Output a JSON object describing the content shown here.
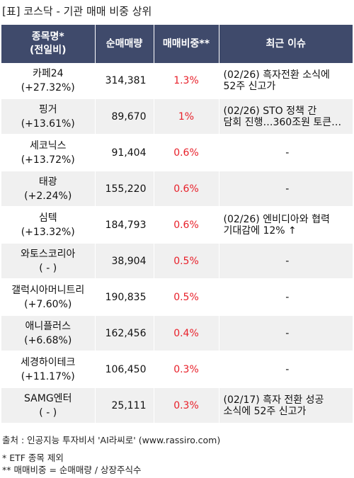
{
  "title": "[표] 코스닥 - 기관 매매 비중 상위",
  "headers": {
    "name_line1": "종목명*",
    "name_line2": "(전일비)",
    "volume": "순매매량",
    "ratio": "매매비중**",
    "issue": "최근 이슈"
  },
  "rows": [
    {
      "name": "카페24",
      "change": "(+27.32%)",
      "volume": "314,381",
      "ratio": "1.3%",
      "issue_line1": "(02/26) 흑자전환 소식에",
      "issue_line2": " 52주 신고가"
    },
    {
      "name": "핑거",
      "change": "(+13.61%)",
      "volume": "89,670",
      "ratio": "1%",
      "issue_line1": "(02/26) STO 정책 간",
      "issue_line2": "담회 진행…360조원 토큰…"
    },
    {
      "name": "세코닉스",
      "change": "(+13.72%)",
      "volume": "91,404",
      "ratio": "0.6%",
      "issue_line1": "-",
      "issue_line2": ""
    },
    {
      "name": "태광",
      "change": "(+2.24%)",
      "volume": "155,220",
      "ratio": "0.6%",
      "issue_line1": "-",
      "issue_line2": ""
    },
    {
      "name": "심텍",
      "change": "(+13.32%)",
      "volume": "184,793",
      "ratio": "0.6%",
      "issue_line1": "(02/26) 엔비디아와 협력",
      "issue_line2": " 기대감에 12% ↑"
    },
    {
      "name": "와토스코리아",
      "change": "( - )",
      "volume": "38,904",
      "ratio": "0.5%",
      "issue_line1": "-",
      "issue_line2": ""
    },
    {
      "name": "갤럭시아머니트리",
      "change": "(+7.60%)",
      "volume": "190,835",
      "ratio": "0.5%",
      "issue_line1": "-",
      "issue_line2": ""
    },
    {
      "name": "애니플러스",
      "change": "(+6.68%)",
      "volume": "162,456",
      "ratio": "0.4%",
      "issue_line1": "-",
      "issue_line2": ""
    },
    {
      "name": "세경하이테크",
      "change": "(+11.17%)",
      "volume": "106,450",
      "ratio": "0.3%",
      "issue_line1": "-",
      "issue_line2": ""
    },
    {
      "name": "SAMG엔터",
      "change": "( - )",
      "volume": "25,111",
      "ratio": "0.3%",
      "issue_line1": "(02/17) 흑자 전환 성공",
      "issue_line2": " 소식에 52주 신고가"
    }
  ],
  "footer": {
    "source": "출처 : 인공지능 투자비서 'AI라씨로' (www.rassiro.com)",
    "note1": "* ETF 종목 제외",
    "note2": "** 매매비중 = 순매매량 / 상장주식수"
  },
  "colors": {
    "header_bg": "#3f4a6b",
    "ratio_text": "#e8202a",
    "row_alt_bg": "#f0f0f0"
  }
}
